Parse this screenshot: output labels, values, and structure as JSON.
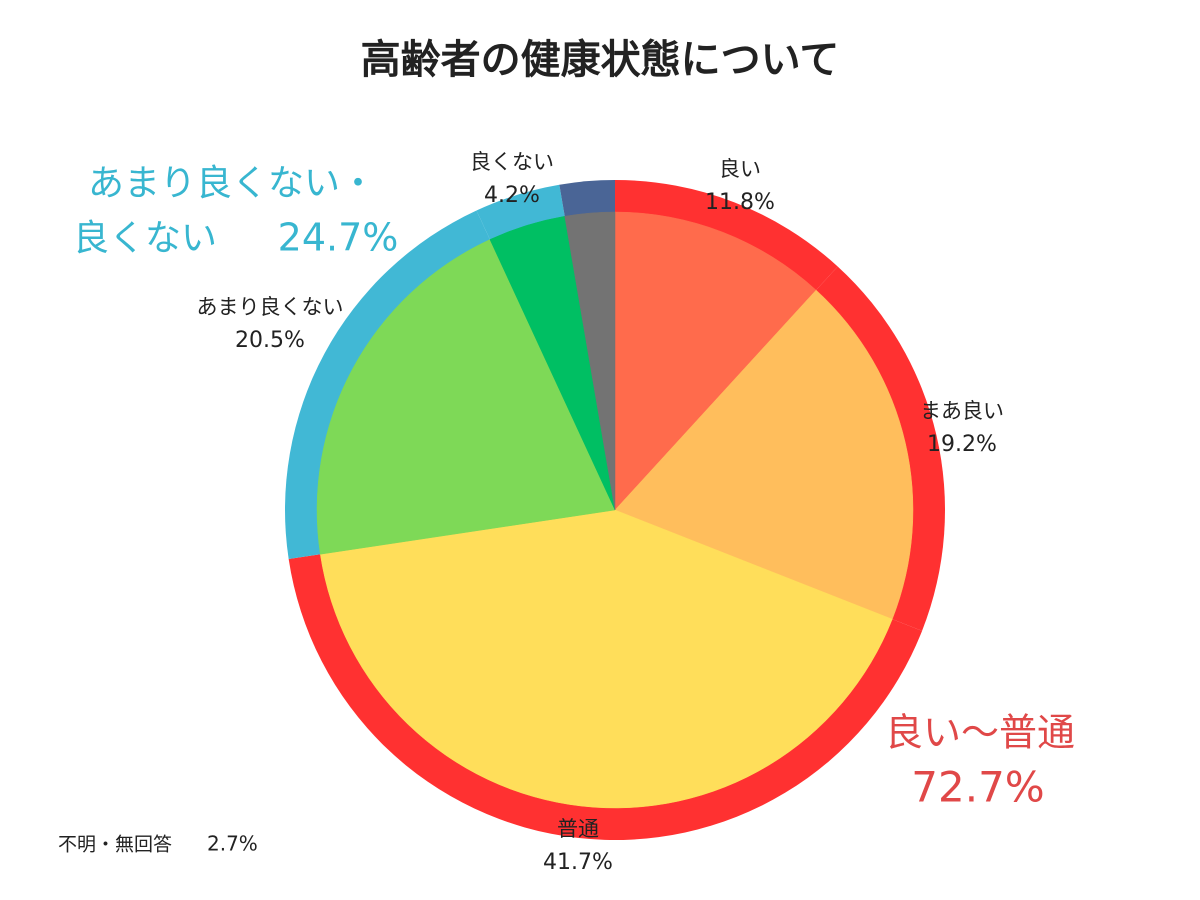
{
  "chart_data": {
    "type": "pie",
    "title": "高齢者の健康状態について",
    "categories": [
      "良い",
      "まあ良い",
      "普通",
      "あまり良くない",
      "良くない",
      "不明・無回答"
    ],
    "values": [
      11.8,
      19.2,
      41.7,
      20.5,
      4.2,
      2.7
    ],
    "value_labels": [
      "11.8%",
      "19.2%",
      "41.7%",
      "20.5%",
      "4.2%",
      "2.7%"
    ],
    "colors": [
      "#ff6b4c",
      "#ffbe5c",
      "#ffde5a",
      "#7ed957",
      "#00bf63",
      "#737373"
    ],
    "ring_colors": [
      "#ff3131",
      "#ff3131",
      "#ff3131",
      "#41b8d5",
      "#41b8d5",
      "#4a6596"
    ],
    "groups": [
      {
        "lines": [
          "良い～普通"
        ],
        "value": 72.7,
        "value_label": "72.7%",
        "color": "#e04848"
      },
      {
        "lines": [
          "あまり良くない・",
          "良くない"
        ],
        "value": 24.7,
        "value_label": "24.7%",
        "color": "#38b6d0"
      }
    ]
  }
}
